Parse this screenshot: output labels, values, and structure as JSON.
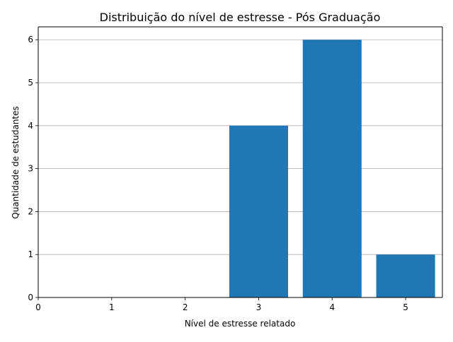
{
  "chart_data": {
    "type": "bar",
    "title": "Distribuição do nível de estresse - Pós Graduação",
    "xlabel": "Nível de estresse relatado",
    "ylabel": "Quantidade de estudantes",
    "categories": [
      3,
      4,
      5
    ],
    "values": [
      4,
      6,
      1
    ],
    "xlim": [
      0,
      5.5
    ],
    "ylim": [
      0,
      6.3
    ],
    "xticks": [
      0,
      1,
      2,
      3,
      4,
      5
    ],
    "yticks": [
      0,
      1,
      2,
      3,
      4,
      5,
      6
    ],
    "bar_width": 0.8,
    "grid": "y",
    "colors": {
      "bar": "#1f77b4",
      "grid": "#b0b0b0",
      "axis": "#000000"
    }
  }
}
